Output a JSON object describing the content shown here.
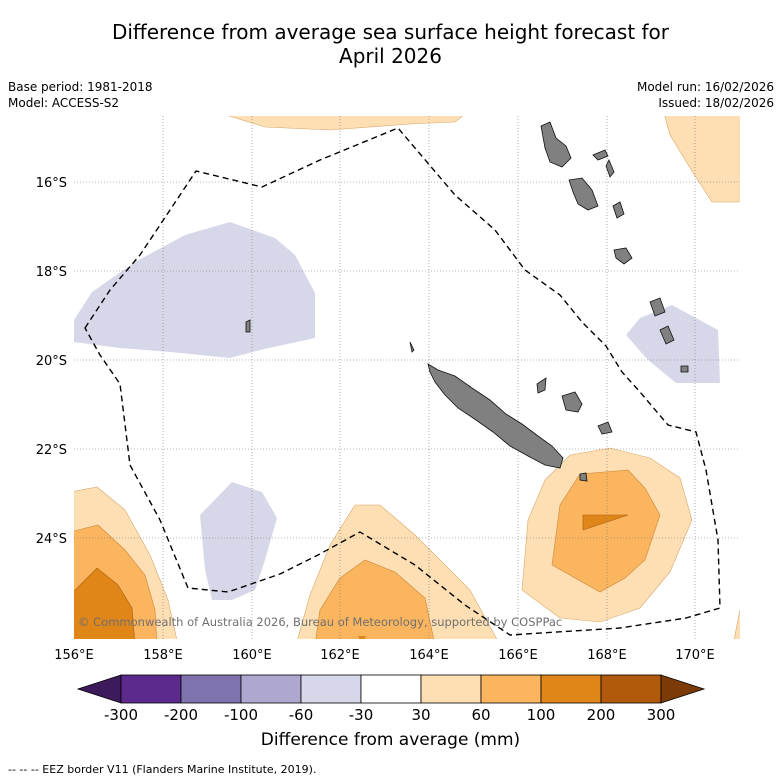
{
  "title_line1": "Difference from average sea surface height forecast for",
  "title_line2": "April 2026",
  "meta": {
    "base_period": "Base period: 1981-2018",
    "model": "Model: ACCESS-S2",
    "model_run": "Model run: 16/02/2026",
    "issued": "Issued: 18/02/2026"
  },
  "axes": {
    "lat_labels": [
      "16°S",
      "18°S",
      "20°S",
      "22°S",
      "24°S"
    ],
    "lon_labels": [
      "156°E",
      "158°E",
      "160°E",
      "162°E",
      "164°E",
      "166°E",
      "168°E",
      "170°E"
    ]
  },
  "copyright": "© Commonwealth of Australia 2026, Bureau of Meteorology, supported by COSPPac",
  "colorbar": {
    "ticks": [
      "-300",
      "-200",
      "-100",
      "-60",
      "-30",
      "30",
      "60",
      "100",
      "200",
      "300"
    ],
    "colors": [
      "#3d1a5c",
      "#5b2a8c",
      "#8073ad",
      "#aea8d1",
      "#d7d7ea",
      "#ffffff",
      "#fddfb3",
      "#fbb55f",
      "#e08518",
      "#b15a0d",
      "#7c3a06"
    ],
    "label": "Difference from average (mm)"
  },
  "footnote": "-- -- -- EEZ border V11 (Flanders Marine Institute, 2019)."
}
